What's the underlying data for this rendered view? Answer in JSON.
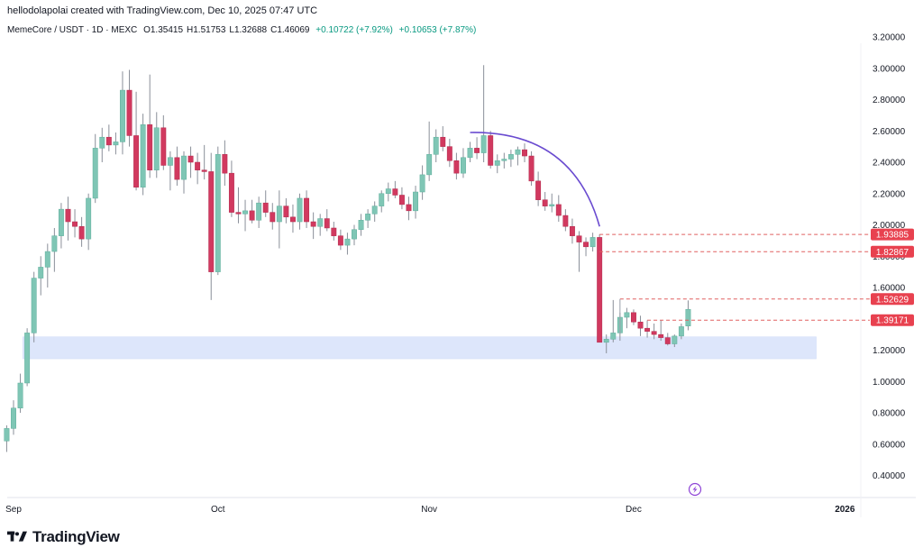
{
  "attribution": "hellodolapolai created with TradingView.com, Dec 10, 2025 07:47 UTC",
  "legend": {
    "symbol": "MemeCore / USDT · 1D · MEXC",
    "open": "O1.35415",
    "high": "H1.51753",
    "low": "L1.32688",
    "close": "C1.46069",
    "change_abs": "+0.10722 (+7.92%)",
    "change2": "+0.10653 (+7.87%)"
  },
  "brand": "TradingView",
  "colors": {
    "up": "#7fc6b5",
    "down": "#d1395f",
    "wick": "#8a8f99",
    "zone": "#dde6fb",
    "curve": "#6a4bd0",
    "level_line": "#e06060",
    "level_tag": "#e8414f",
    "flash": "#8e44d6"
  },
  "chart_data": {
    "type": "candlestick",
    "title": "",
    "y_axis_ticks": [
      "3.20000",
      "3.00000",
      "2.80000",
      "2.60000",
      "2.40000",
      "2.20000",
      "2.00000",
      "1.80000",
      "1.60000",
      "1.40000",
      "1.20000",
      "1.00000",
      "0.80000",
      "0.60000",
      "0.40000"
    ],
    "ylim": [
      0.3,
      3.3
    ],
    "x_axis_labels": [
      {
        "label": "Sep",
        "day": 0
      },
      {
        "label": "Oct",
        "day": 30
      },
      {
        "label": "Nov",
        "day": 61
      },
      {
        "label": "Dec",
        "day": 91
      },
      {
        "label": "2026",
        "day": 122
      }
    ],
    "candles": [
      {
        "o": 0.62,
        "h": 0.72,
        "l": 0.55,
        "c": 0.7
      },
      {
        "o": 0.7,
        "h": 0.88,
        "l": 0.66,
        "c": 0.83
      },
      {
        "o": 0.83,
        "h": 1.05,
        "l": 0.8,
        "c": 0.99
      },
      {
        "o": 0.99,
        "h": 1.34,
        "l": 0.97,
        "c": 1.31
      },
      {
        "o": 1.31,
        "h": 1.7,
        "l": 1.25,
        "c": 1.66
      },
      {
        "o": 1.66,
        "h": 1.8,
        "l": 1.55,
        "c": 1.73
      },
      {
        "o": 1.73,
        "h": 1.88,
        "l": 1.6,
        "c": 1.83
      },
      {
        "o": 1.83,
        "h": 1.98,
        "l": 1.7,
        "c": 1.93
      },
      {
        "o": 1.93,
        "h": 2.14,
        "l": 1.85,
        "c": 2.1
      },
      {
        "o": 2.1,
        "h": 2.18,
        "l": 1.9,
        "c": 2.02
      },
      {
        "o": 2.02,
        "h": 2.1,
        "l": 1.92,
        "c": 1.99
      },
      {
        "o": 1.99,
        "h": 2.05,
        "l": 1.86,
        "c": 1.91
      },
      {
        "o": 1.91,
        "h": 2.2,
        "l": 1.84,
        "c": 2.17
      },
      {
        "o": 2.17,
        "h": 2.58,
        "l": 2.14,
        "c": 2.49
      },
      {
        "o": 2.49,
        "h": 2.62,
        "l": 2.4,
        "c": 2.56
      },
      {
        "o": 2.56,
        "h": 2.64,
        "l": 2.47,
        "c": 2.51
      },
      {
        "o": 2.51,
        "h": 2.59,
        "l": 2.45,
        "c": 2.53
      },
      {
        "o": 2.53,
        "h": 2.98,
        "l": 2.45,
        "c": 2.86
      },
      {
        "o": 2.86,
        "h": 2.99,
        "l": 2.5,
        "c": 2.57
      },
      {
        "o": 2.57,
        "h": 2.85,
        "l": 2.22,
        "c": 2.24
      },
      {
        "o": 2.24,
        "h": 2.71,
        "l": 2.19,
        "c": 2.64
      },
      {
        "o": 2.64,
        "h": 2.96,
        "l": 2.3,
        "c": 2.35
      },
      {
        "o": 2.35,
        "h": 2.72,
        "l": 2.3,
        "c": 2.62
      },
      {
        "o": 2.62,
        "h": 2.7,
        "l": 2.35,
        "c": 2.38
      },
      {
        "o": 2.38,
        "h": 2.47,
        "l": 2.22,
        "c": 2.43
      },
      {
        "o": 2.43,
        "h": 2.5,
        "l": 2.25,
        "c": 2.29
      },
      {
        "o": 2.29,
        "h": 2.47,
        "l": 2.2,
        "c": 2.44
      },
      {
        "o": 2.44,
        "h": 2.5,
        "l": 2.3,
        "c": 2.4
      },
      {
        "o": 2.4,
        "h": 2.46,
        "l": 2.26,
        "c": 2.35
      },
      {
        "o": 2.35,
        "h": 2.51,
        "l": 2.29,
        "c": 2.34
      },
      {
        "o": 2.34,
        "h": 2.46,
        "l": 1.52,
        "c": 1.7
      },
      {
        "o": 1.7,
        "h": 2.5,
        "l": 1.68,
        "c": 2.45
      },
      {
        "o": 2.45,
        "h": 2.54,
        "l": 2.25,
        "c": 2.33
      },
      {
        "o": 2.33,
        "h": 2.41,
        "l": 2.05,
        "c": 2.08
      },
      {
        "o": 2.08,
        "h": 2.24,
        "l": 2.01,
        "c": 2.07
      },
      {
        "o": 2.07,
        "h": 2.16,
        "l": 1.96,
        "c": 2.09
      },
      {
        "o": 2.09,
        "h": 2.16,
        "l": 2.01,
        "c": 2.03
      },
      {
        "o": 2.03,
        "h": 2.18,
        "l": 1.98,
        "c": 2.14
      },
      {
        "o": 2.14,
        "h": 2.22,
        "l": 2.05,
        "c": 2.08
      },
      {
        "o": 2.08,
        "h": 2.14,
        "l": 1.97,
        "c": 2.02
      },
      {
        "o": 2.02,
        "h": 2.22,
        "l": 1.85,
        "c": 2.12
      },
      {
        "o": 2.12,
        "h": 2.17,
        "l": 2.01,
        "c": 2.05
      },
      {
        "o": 2.05,
        "h": 2.13,
        "l": 1.95,
        "c": 2.02
      },
      {
        "o": 2.02,
        "h": 2.2,
        "l": 1.97,
        "c": 2.17
      },
      {
        "o": 2.17,
        "h": 2.22,
        "l": 1.98,
        "c": 2.02
      },
      {
        "o": 2.02,
        "h": 2.08,
        "l": 1.91,
        "c": 1.99
      },
      {
        "o": 1.99,
        "h": 2.07,
        "l": 1.93,
        "c": 2.04
      },
      {
        "o": 2.04,
        "h": 2.1,
        "l": 1.96,
        "c": 1.98
      },
      {
        "o": 1.98,
        "h": 2.02,
        "l": 1.9,
        "c": 1.93
      },
      {
        "o": 1.93,
        "h": 1.97,
        "l": 1.84,
        "c": 1.87
      },
      {
        "o": 1.87,
        "h": 1.95,
        "l": 1.81,
        "c": 1.91
      },
      {
        "o": 1.91,
        "h": 2.0,
        "l": 1.87,
        "c": 1.97
      },
      {
        "o": 1.97,
        "h": 2.07,
        "l": 1.93,
        "c": 2.03
      },
      {
        "o": 2.03,
        "h": 2.1,
        "l": 1.98,
        "c": 2.07
      },
      {
        "o": 2.07,
        "h": 2.15,
        "l": 2.02,
        "c": 2.12
      },
      {
        "o": 2.12,
        "h": 2.22,
        "l": 2.08,
        "c": 2.2
      },
      {
        "o": 2.2,
        "h": 2.27,
        "l": 2.15,
        "c": 2.23
      },
      {
        "o": 2.23,
        "h": 2.28,
        "l": 2.17,
        "c": 2.19
      },
      {
        "o": 2.19,
        "h": 2.24,
        "l": 2.1,
        "c": 2.13
      },
      {
        "o": 2.13,
        "h": 2.18,
        "l": 2.03,
        "c": 2.09
      },
      {
        "o": 2.09,
        "h": 2.25,
        "l": 2.04,
        "c": 2.21
      },
      {
        "o": 2.21,
        "h": 2.38,
        "l": 2.16,
        "c": 2.32
      },
      {
        "o": 2.32,
        "h": 2.66,
        "l": 2.28,
        "c": 2.45
      },
      {
        "o": 2.45,
        "h": 2.61,
        "l": 2.4,
        "c": 2.56
      },
      {
        "o": 2.56,
        "h": 2.63,
        "l": 2.47,
        "c": 2.5
      },
      {
        "o": 2.5,
        "h": 2.55,
        "l": 2.37,
        "c": 2.41
      },
      {
        "o": 2.41,
        "h": 2.46,
        "l": 2.29,
        "c": 2.33
      },
      {
        "o": 2.33,
        "h": 2.49,
        "l": 2.3,
        "c": 2.43
      },
      {
        "o": 2.43,
        "h": 2.53,
        "l": 2.4,
        "c": 2.49
      },
      {
        "o": 2.49,
        "h": 2.56,
        "l": 2.42,
        "c": 2.46
      },
      {
        "o": 2.46,
        "h": 3.02,
        "l": 2.4,
        "c": 2.57
      },
      {
        "o": 2.57,
        "h": 2.6,
        "l": 2.36,
        "c": 2.38
      },
      {
        "o": 2.38,
        "h": 2.45,
        "l": 2.33,
        "c": 2.41
      },
      {
        "o": 2.41,
        "h": 2.46,
        "l": 2.36,
        "c": 2.42
      },
      {
        "o": 2.42,
        "h": 2.48,
        "l": 2.37,
        "c": 2.45
      },
      {
        "o": 2.45,
        "h": 2.5,
        "l": 2.38,
        "c": 2.48
      },
      {
        "o": 2.48,
        "h": 2.52,
        "l": 2.4,
        "c": 2.44
      },
      {
        "o": 2.44,
        "h": 2.47,
        "l": 2.25,
        "c": 2.28
      },
      {
        "o": 2.28,
        "h": 2.34,
        "l": 2.12,
        "c": 2.16
      },
      {
        "o": 2.16,
        "h": 2.21,
        "l": 2.09,
        "c": 2.12
      },
      {
        "o": 2.12,
        "h": 2.2,
        "l": 2.08,
        "c": 2.13
      },
      {
        "o": 2.13,
        "h": 2.19,
        "l": 2.02,
        "c": 2.06
      },
      {
        "o": 2.06,
        "h": 2.1,
        "l": 1.96,
        "c": 1.99
      },
      {
        "o": 1.99,
        "h": 2.04,
        "l": 1.88,
        "c": 1.93
      },
      {
        "o": 1.93,
        "h": 1.96,
        "l": 1.7,
        "c": 1.89
      },
      {
        "o": 1.89,
        "h": 1.92,
        "l": 1.8,
        "c": 1.86
      },
      {
        "o": 1.86,
        "h": 1.95,
        "l": 1.83,
        "c": 1.92
      },
      {
        "o": 1.92,
        "h": 1.94,
        "l": 1.25,
        "c": 1.25
      },
      {
        "o": 1.25,
        "h": 1.3,
        "l": 1.18,
        "c": 1.27
      },
      {
        "o": 1.27,
        "h": 1.52,
        "l": 1.25,
        "c": 1.31
      },
      {
        "o": 1.31,
        "h": 1.44,
        "l": 1.26,
        "c": 1.41
      },
      {
        "o": 1.41,
        "h": 1.47,
        "l": 1.34,
        "c": 1.44
      },
      {
        "o": 1.44,
        "h": 1.46,
        "l": 1.36,
        "c": 1.38
      },
      {
        "o": 1.38,
        "h": 1.42,
        "l": 1.29,
        "c": 1.34
      },
      {
        "o": 1.34,
        "h": 1.39,
        "l": 1.28,
        "c": 1.32
      },
      {
        "o": 1.32,
        "h": 1.37,
        "l": 1.27,
        "c": 1.3
      },
      {
        "o": 1.3,
        "h": 1.39,
        "l": 1.26,
        "c": 1.28
      },
      {
        "o": 1.28,
        "h": 1.31,
        "l": 1.23,
        "c": 1.24
      },
      {
        "o": 1.24,
        "h": 1.3,
        "l": 1.22,
        "c": 1.29
      },
      {
        "o": 1.29,
        "h": 1.37,
        "l": 1.27,
        "c": 1.35
      },
      {
        "o": 1.35415,
        "h": 1.51753,
        "l": 1.32688,
        "c": 1.46069
      }
    ],
    "first_candle_day": -1,
    "support_zone": {
      "from": 1.145,
      "to": 1.285,
      "start_day": -1,
      "end_day": 117
    },
    "arc_from": {
      "day": 67,
      "price": 2.59
    },
    "arc_to": {
      "day": 86,
      "price": 1.99
    },
    "price_levels": [
      {
        "label": "1.93885",
        "value": 1.93885,
        "start_day": 86
      },
      {
        "label": "1.82867",
        "value": 1.82867,
        "start_day": 86
      },
      {
        "label": "1.52629",
        "value": 1.52629,
        "start_day": 89
      },
      {
        "label": "1.39171",
        "value": 1.39171,
        "start_day": 93
      }
    ]
  }
}
